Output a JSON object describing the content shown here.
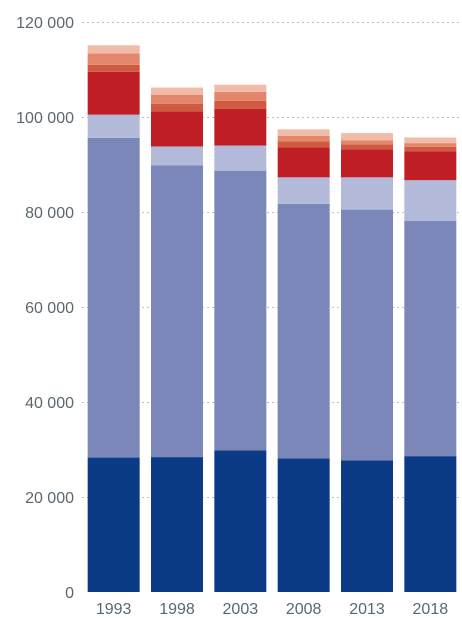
{
  "chart_data": {
    "type": "bar",
    "stacked": true,
    "categories": [
      "1993",
      "1998",
      "2003",
      "2008",
      "2013",
      "2018"
    ],
    "ylim": [
      0,
      120000
    ],
    "yticks": [
      0,
      20000,
      40000,
      60000,
      80000,
      100000,
      120000
    ],
    "ytick_labels": [
      "0",
      "20 000",
      "40 000",
      "60 000",
      "80 000",
      "100 000",
      "120 000"
    ],
    "grid": true,
    "legend": "none",
    "series": [
      {
        "color": "#0b3a87",
        "values": [
          28300,
          28400,
          29800,
          28100,
          27700,
          28600
        ]
      },
      {
        "color": "#7a87b8",
        "values": [
          67300,
          61400,
          58900,
          53600,
          52800,
          49500
        ]
      },
      {
        "color": "#b3b9d9",
        "values": [
          4900,
          4000,
          5300,
          5600,
          6800,
          8600
        ]
      },
      {
        "color": "#be1e24",
        "values": [
          9000,
          7400,
          7700,
          6300,
          5900,
          6100
        ]
      },
      {
        "color": "#cf5a40",
        "values": [
          1500,
          1600,
          1700,
          1300,
          1000,
          900
        ]
      },
      {
        "color": "#e2866c",
        "values": [
          2400,
          1900,
          1900,
          1100,
          900,
          800
        ]
      },
      {
        "color": "#f0bca8",
        "values": [
          1700,
          1500,
          1500,
          1400,
          1500,
          1200
        ]
      }
    ]
  }
}
